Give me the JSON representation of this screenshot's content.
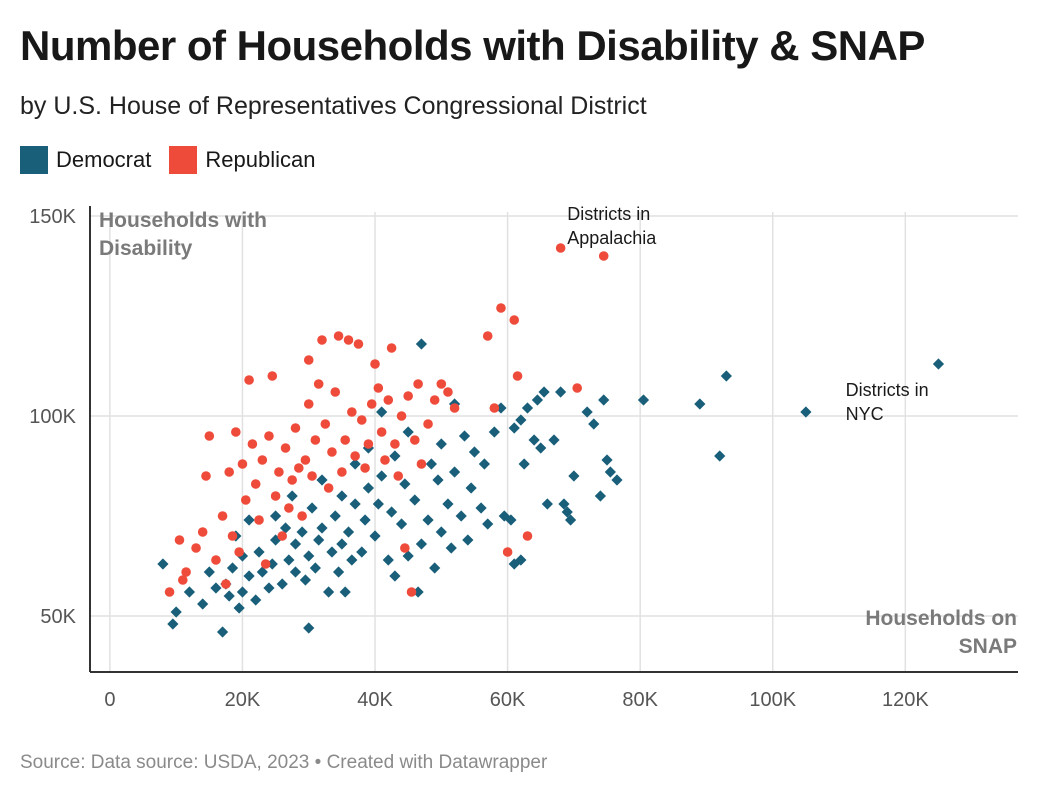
{
  "header": {
    "title": "Number of Households with Disability & SNAP",
    "subtitle": "by U.S. House of Representatives Congressional District"
  },
  "legend": [
    {
      "label": "Democrat",
      "color": "#1a5f7a"
    },
    {
      "label": "Republican",
      "color": "#ee4b3b"
    }
  ],
  "footer": "Source: Data source: USDA, 2023 • Created with Datawrapper",
  "chart_data": {
    "type": "scatter",
    "xlabel_lines": [
      "Households on",
      "SNAP"
    ],
    "ylabel_lines": [
      "Households with",
      "Disability"
    ],
    "xlim": [
      -3000,
      137000
    ],
    "ylim": [
      36000,
      151000
    ],
    "x_ticks": [
      0,
      20000,
      40000,
      60000,
      80000,
      100000,
      120000
    ],
    "x_tick_labels": [
      "0",
      "20K",
      "40K",
      "60K",
      "80K",
      "100K",
      "120K"
    ],
    "y_ticks": [
      50000,
      100000,
      150000
    ],
    "y_tick_labels": [
      "50K",
      "100K",
      "150K"
    ],
    "annotations": [
      {
        "lines": [
          "Districts in",
          "Appalachia"
        ],
        "x": 69000,
        "y": 149000
      },
      {
        "lines": [
          "Districts in",
          "NYC"
        ],
        "x": 111000,
        "y": 105000
      }
    ],
    "series": [
      {
        "name": "Democrat",
        "shape": "diamond",
        "color": "#1a5f7a",
        "points": [
          [
            8000,
            63000
          ],
          [
            9500,
            48000
          ],
          [
            10000,
            51000
          ],
          [
            12000,
            56000
          ],
          [
            14000,
            53000
          ],
          [
            15000,
            61000
          ],
          [
            16000,
            57000
          ],
          [
            17000,
            46000
          ],
          [
            17500,
            58000
          ],
          [
            18000,
            55000
          ],
          [
            18500,
            62000
          ],
          [
            19000,
            70000
          ],
          [
            19500,
            52000
          ],
          [
            20000,
            56000
          ],
          [
            20000,
            65000
          ],
          [
            21000,
            60000
          ],
          [
            21000,
            74000
          ],
          [
            22000,
            54000
          ],
          [
            22500,
            66000
          ],
          [
            23000,
            61000
          ],
          [
            24000,
            57000
          ],
          [
            24500,
            63000
          ],
          [
            25000,
            69000
          ],
          [
            25000,
            75000
          ],
          [
            26000,
            58000
          ],
          [
            26500,
            72000
          ],
          [
            27000,
            64000
          ],
          [
            27500,
            80000
          ],
          [
            28000,
            61000
          ],
          [
            28000,
            68000
          ],
          [
            29000,
            71000
          ],
          [
            29500,
            59000
          ],
          [
            30000,
            47000
          ],
          [
            30000,
            65000
          ],
          [
            30500,
            77000
          ],
          [
            31000,
            62000
          ],
          [
            31500,
            69000
          ],
          [
            32000,
            72000
          ],
          [
            32000,
            84000
          ],
          [
            33000,
            56000
          ],
          [
            33500,
            66000
          ],
          [
            34000,
            75000
          ],
          [
            34500,
            61000
          ],
          [
            35000,
            68000
          ],
          [
            35000,
            80000
          ],
          [
            35500,
            56000
          ],
          [
            36000,
            71000
          ],
          [
            36500,
            64000
          ],
          [
            37000,
            78000
          ],
          [
            37000,
            88000
          ],
          [
            38000,
            66000
          ],
          [
            38500,
            74000
          ],
          [
            39000,
            82000
          ],
          [
            39000,
            92000
          ],
          [
            40000,
            70000
          ],
          [
            40500,
            78000
          ],
          [
            41000,
            85000
          ],
          [
            41000,
            101000
          ],
          [
            42000,
            64000
          ],
          [
            42500,
            76000
          ],
          [
            43000,
            60000
          ],
          [
            43000,
            90000
          ],
          [
            44000,
            73000
          ],
          [
            44500,
            83000
          ],
          [
            45000,
            65000
          ],
          [
            45000,
            96000
          ],
          [
            46000,
            79000
          ],
          [
            46500,
            56000
          ],
          [
            47000,
            68000
          ],
          [
            47000,
            118000
          ],
          [
            48000,
            74000
          ],
          [
            48500,
            88000
          ],
          [
            49000,
            62000
          ],
          [
            49500,
            84000
          ],
          [
            50000,
            71000
          ],
          [
            50000,
            93000
          ],
          [
            51000,
            78000
          ],
          [
            51500,
            67000
          ],
          [
            52000,
            86000
          ],
          [
            52000,
            103000
          ],
          [
            53000,
            75000
          ],
          [
            53500,
            95000
          ],
          [
            54000,
            69000
          ],
          [
            54500,
            82000
          ],
          [
            55000,
            91000
          ],
          [
            56000,
            77000
          ],
          [
            56500,
            88000
          ],
          [
            57000,
            73000
          ],
          [
            58000,
            96000
          ],
          [
            59000,
            102000
          ],
          [
            59500,
            75000
          ],
          [
            60500,
            74000
          ],
          [
            61000,
            63000
          ],
          [
            61000,
            97000
          ],
          [
            62000,
            99000
          ],
          [
            62000,
            64000
          ],
          [
            62500,
            88000
          ],
          [
            63000,
            102000
          ],
          [
            64000,
            94000
          ],
          [
            64500,
            104000
          ],
          [
            65000,
            92000
          ],
          [
            65500,
            106000
          ],
          [
            66000,
            78000
          ],
          [
            67000,
            94000
          ],
          [
            68000,
            106000
          ],
          [
            68500,
            78000
          ],
          [
            69000,
            76000
          ],
          [
            69500,
            74000
          ],
          [
            70000,
            85000
          ],
          [
            72000,
            101000
          ],
          [
            73000,
            98000
          ],
          [
            74000,
            80000
          ],
          [
            74500,
            104000
          ],
          [
            75000,
            89000
          ],
          [
            75500,
            86000
          ],
          [
            76500,
            84000
          ],
          [
            80500,
            104000
          ],
          [
            89000,
            103000
          ],
          [
            92000,
            90000
          ],
          [
            93000,
            110000
          ],
          [
            105000,
            101000
          ],
          [
            125000,
            113000
          ]
        ]
      },
      {
        "name": "Republican",
        "shape": "circle",
        "color": "#ee4b3b",
        "points": [
          [
            9000,
            56000
          ],
          [
            10500,
            69000
          ],
          [
            11000,
            59000
          ],
          [
            11500,
            61000
          ],
          [
            13000,
            67000
          ],
          [
            14000,
            71000
          ],
          [
            14500,
            85000
          ],
          [
            15000,
            95000
          ],
          [
            16000,
            64000
          ],
          [
            17000,
            75000
          ],
          [
            17500,
            58000
          ],
          [
            18000,
            86000
          ],
          [
            18500,
            70000
          ],
          [
            19000,
            96000
          ],
          [
            19500,
            66000
          ],
          [
            20000,
            88000
          ],
          [
            20500,
            79000
          ],
          [
            21000,
            109000
          ],
          [
            21500,
            93000
          ],
          [
            22000,
            83000
          ],
          [
            22500,
            74000
          ],
          [
            23000,
            89000
          ],
          [
            23500,
            63000
          ],
          [
            24000,
            95000
          ],
          [
            24500,
            110000
          ],
          [
            25000,
            80000
          ],
          [
            25500,
            86000
          ],
          [
            26000,
            70000
          ],
          [
            26500,
            92000
          ],
          [
            27000,
            77000
          ],
          [
            27500,
            84000
          ],
          [
            28000,
            97000
          ],
          [
            28500,
            87000
          ],
          [
            29000,
            75000
          ],
          [
            29500,
            89000
          ],
          [
            30000,
            103000
          ],
          [
            30000,
            114000
          ],
          [
            30500,
            85000
          ],
          [
            31000,
            94000
          ],
          [
            31500,
            108000
          ],
          [
            32000,
            119000
          ],
          [
            32500,
            98000
          ],
          [
            33000,
            82000
          ],
          [
            33500,
            91000
          ],
          [
            34000,
            106000
          ],
          [
            34500,
            120000
          ],
          [
            35000,
            86000
          ],
          [
            35500,
            94000
          ],
          [
            36000,
            119000
          ],
          [
            36500,
            101000
          ],
          [
            37000,
            90000
          ],
          [
            37500,
            118000
          ],
          [
            38000,
            99000
          ],
          [
            38500,
            87000
          ],
          [
            39000,
            93000
          ],
          [
            39500,
            103000
          ],
          [
            40000,
            113000
          ],
          [
            40500,
            107000
          ],
          [
            41000,
            96000
          ],
          [
            41500,
            89000
          ],
          [
            42000,
            104000
          ],
          [
            42500,
            117000
          ],
          [
            43000,
            93000
          ],
          [
            43500,
            85000
          ],
          [
            44000,
            100000
          ],
          [
            44500,
            67000
          ],
          [
            45000,
            105000
          ],
          [
            45500,
            56000
          ],
          [
            46000,
            94000
          ],
          [
            46500,
            108000
          ],
          [
            47000,
            88000
          ],
          [
            48000,
            98000
          ],
          [
            49000,
            104000
          ],
          [
            50000,
            108000
          ],
          [
            51000,
            106000
          ],
          [
            52000,
            102000
          ],
          [
            57000,
            120000
          ],
          [
            58000,
            102000
          ],
          [
            59000,
            127000
          ],
          [
            60000,
            66000
          ],
          [
            61000,
            124000
          ],
          [
            61500,
            110000
          ],
          [
            63000,
            70000
          ],
          [
            68000,
            142000
          ],
          [
            70500,
            107000
          ],
          [
            74500,
            140000
          ]
        ]
      }
    ]
  }
}
